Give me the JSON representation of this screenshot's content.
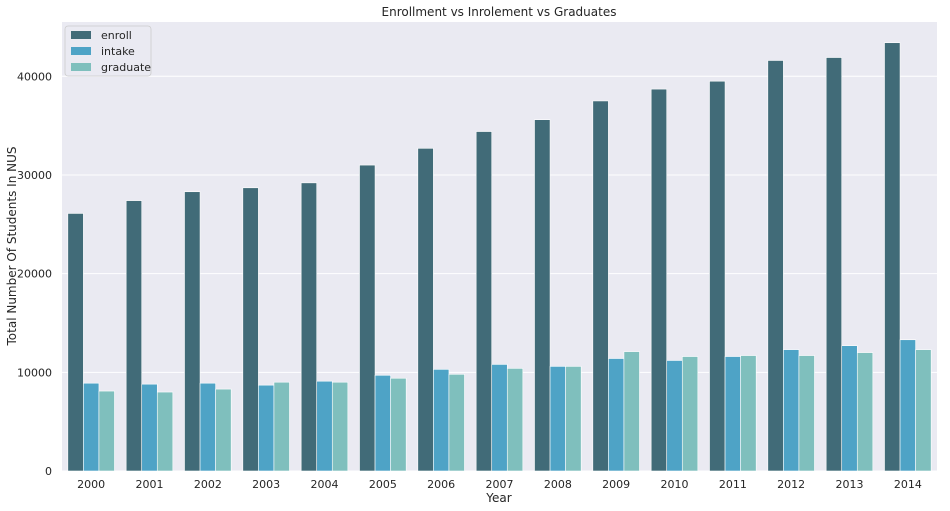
{
  "chart_data": {
    "type": "bar",
    "title": "Enrollment vs Inrolement vs Graduates",
    "xlabel": "Year",
    "ylabel": "Total Number Of Students In NUS",
    "categories": [
      "2000",
      "2001",
      "2002",
      "2003",
      "2004",
      "2005",
      "2006",
      "2007",
      "2008",
      "2009",
      "2010",
      "2011",
      "2012",
      "2013",
      "2014"
    ],
    "series": [
      {
        "name": "enroll",
        "color": "#416b78",
        "values": [
          26100,
          27400,
          28300,
          28700,
          29200,
          31000,
          32700,
          34400,
          35600,
          37500,
          38700,
          39500,
          41600,
          41900,
          43400
        ]
      },
      {
        "name": "intake",
        "color": "#4ea3c6",
        "values": [
          8900,
          8800,
          8900,
          8700,
          9100,
          9700,
          10300,
          10800,
          10600,
          11400,
          11200,
          11600,
          12300,
          12700,
          13300
        ]
      },
      {
        "name": "graduate",
        "color": "#7fbfbd",
        "values": [
          8100,
          8000,
          8300,
          9000,
          9000,
          9400,
          9800,
          10400,
          10600,
          12100,
          11600,
          11700,
          11700,
          12000,
          12300
        ]
      }
    ],
    "ylim": [
      0,
      45500
    ],
    "yticks": [
      0,
      10000,
      20000,
      30000,
      40000
    ],
    "grid": true,
    "legend_position": "top-left",
    "background": "#eaeaf2"
  }
}
